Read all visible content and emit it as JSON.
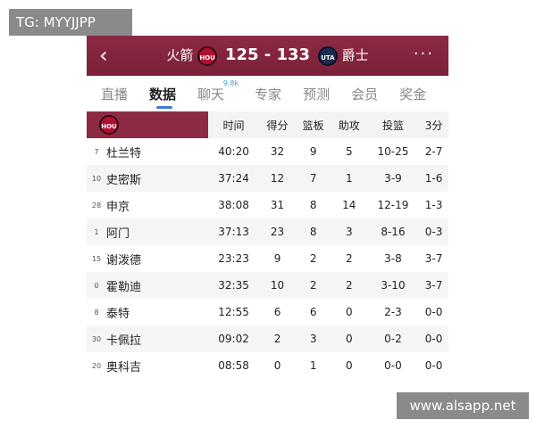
{
  "watermarks": {
    "top_left": "TG: MYYJJPP",
    "bottom_right": "www.alsapp.net"
  },
  "header": {
    "home_team": "火箭",
    "home_abbr": "HOU",
    "score": "125 - 133",
    "away_abbr": "UTA",
    "away_team": "爵士"
  },
  "tabs": [
    {
      "label": "直播"
    },
    {
      "label": "数据",
      "active": true
    },
    {
      "label": "聊天",
      "badge": "9.8k"
    },
    {
      "label": "专家"
    },
    {
      "label": "预测"
    },
    {
      "label": "会员"
    },
    {
      "label": "奖金"
    }
  ],
  "table": {
    "team_abbr": "HOU",
    "columns": [
      "时间",
      "得分",
      "篮板",
      "助攻",
      "投篮",
      "3分"
    ],
    "rows": [
      [
        "7",
        "杜兰特",
        "40:20",
        "32",
        "9",
        "5",
        "10-25",
        "2-7"
      ],
      [
        "10",
        "史密斯",
        "37:24",
        "12",
        "7",
        "1",
        "3-9",
        "1-6"
      ],
      [
        "28",
        "申京",
        "38:08",
        "31",
        "8",
        "14",
        "12-19",
        "1-3"
      ],
      [
        "1",
        "阿门",
        "37:13",
        "23",
        "8",
        "3",
        "8-16",
        "0-3"
      ],
      [
        "15",
        "谢泼德",
        "23:23",
        "9",
        "2",
        "2",
        "3-8",
        "3-7"
      ],
      [
        "0",
        "霍勒迪",
        "32:35",
        "10",
        "2",
        "2",
        "3-10",
        "3-7"
      ],
      [
        "8",
        "泰特",
        "12:55",
        "6",
        "6",
        "0",
        "2-3",
        "0-0"
      ],
      [
        "30",
        "卡佩拉",
        "09:02",
        "2",
        "3",
        "0",
        "0-2",
        "0-0"
      ],
      [
        "20",
        "奥科吉",
        "08:58",
        "0",
        "1",
        "0",
        "0-0",
        "0-0"
      ]
    ]
  }
}
